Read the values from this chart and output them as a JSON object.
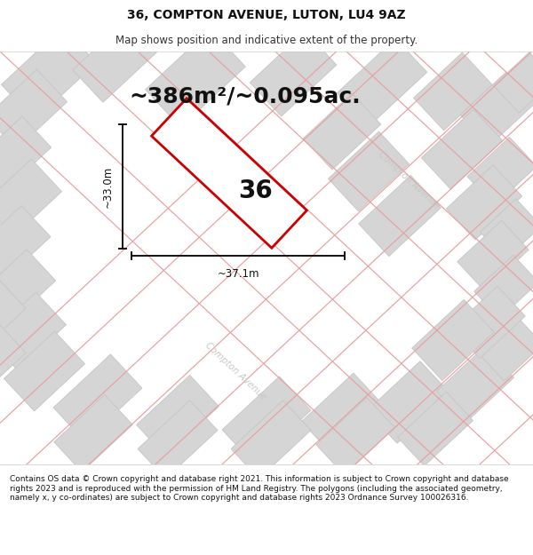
{
  "title": "36, COMPTON AVENUE, LUTON, LU4 9AZ",
  "subtitle": "Map shows position and indicative extent of the property.",
  "area_text": "~386m²/~0.095ac.",
  "width_label": "~37.1m",
  "height_label": "~33.0m",
  "plot_number": "36",
  "footer": "Contains OS data © Crown copyright and database right 2021. This information is subject to Crown copyright and database rights 2023 and is reproduced with the permission of HM Land Registry. The polygons (including the associated geometry, namely x, y co-ordinates) are subject to Crown copyright and database rights 2023 Ordnance Survey 100026316.",
  "bg_color": "#efefef",
  "block_color": "#d5d5d5",
  "block_edge": "#c5c5c5",
  "road_color": "#e8a0a0",
  "plot_stroke": "#cc0000",
  "title_fontsize": 10,
  "subtitle_fontsize": 8.5,
  "area_fontsize": 18,
  "dim_fontsize": 8.5,
  "plot_num_fontsize": 20,
  "footer_fontsize": 6.5,
  "street_label_color": "#c8c8c8",
  "street_label_fontsize": 7.5
}
